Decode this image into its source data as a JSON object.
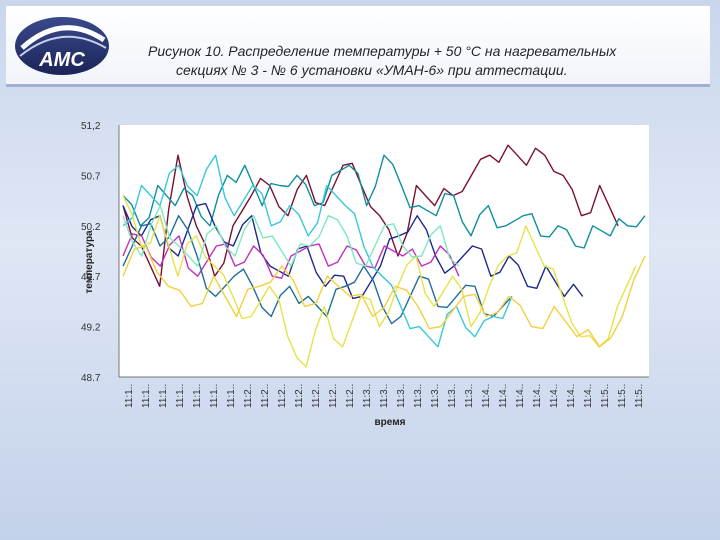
{
  "header": {
    "logo_text": "АМС",
    "caption_line1": "Рисунок 10. Распределение температуры + 50 °С на нагревательных",
    "caption_line2": "секциях № 3 - № 6 установки «УМАН-6» при аттестации."
  },
  "chart_data": {
    "type": "line",
    "xlabel": "время",
    "ylabel": "температура",
    "ylim": [
      48.7,
      51.2
    ],
    "yticks": [
      "51,2",
      "50.7",
      "50.2",
      "49.7",
      "49.2",
      "48.7"
    ],
    "xticks": [
      "11:1..",
      "11:1..",
      "11:1..",
      "11:1..",
      "11:1..",
      "11:1..",
      "11:1..",
      "11:2..",
      "11:2..",
      "11:2..",
      "11:2..",
      "11:2..",
      "11:2..",
      "11:2..",
      "11:3..",
      "11:3..",
      "11:3..",
      "11:3..",
      "11:3..",
      "11:3..",
      "11:3..",
      "11:4..",
      "11:4..",
      "11:4..",
      "11:4..",
      "11:4..",
      "11:4..",
      "11:4..",
      "11:5..",
      "11:5..",
      "11:5.."
    ],
    "grid": false,
    "legend": "none",
    "series": [
      {
        "color": "#7a1030",
        "values": [
          50.4,
          50.0,
          49.6,
          50.9,
          50.2,
          49.7,
          50.2,
          50.5,
          50.6,
          50.3,
          50.7,
          50.4,
          50.8,
          50.6,
          50.3,
          49.9,
          50.6,
          50.4,
          50.5,
          50.7,
          50.9,
          51.0,
          50.8,
          50.9,
          50.7,
          50.3,
          50.6,
          50.2
        ]
      },
      {
        "color": "#0e8ea0",
        "values": [
          50.5,
          50.2,
          50.6,
          50.4,
          50.5,
          50.2,
          50.7,
          50.8,
          50.4,
          50.6,
          50.7,
          50.4,
          50.7,
          50.8,
          50.4,
          50.9,
          50.6,
          50.4,
          50.3,
          50.5,
          50.1,
          50.4,
          50.2,
          50.3,
          50.1,
          50.2,
          50.0,
          50.2,
          50.1,
          50.2,
          50.3
        ]
      },
      {
        "color": "#1c2a8c",
        "values": [
          50.4,
          50.1,
          50.3,
          49.9,
          50.4,
          50.2,
          50.0,
          50.3,
          49.8,
          49.7,
          50.0,
          49.6,
          49.7,
          49.5,
          49.8,
          50.1,
          50.3,
          49.9,
          49.8,
          50.0,
          49.7,
          49.9,
          49.6,
          49.8,
          49.5,
          49.5
        ]
      },
      {
        "color": "#c030c0",
        "values": [
          49.9,
          50.1,
          49.8,
          50.1,
          49.7,
          50.0,
          49.8,
          50.0,
          49.7,
          49.9,
          50.0,
          49.8,
          50.0,
          49.8,
          50.0,
          49.9,
          49.8,
          50.0,
          49.7
        ]
      },
      {
        "color": "#1f6d9a",
        "values": [
          49.8,
          50.2,
          50.0,
          50.3,
          49.9,
          49.5,
          49.7,
          49.6,
          49.3,
          49.6,
          49.5,
          49.3,
          49.6,
          49.8,
          49.4,
          49.3,
          49.7,
          49.4,
          49.5,
          49.6,
          49.3,
          49.5
        ]
      },
      {
        "color": "#38c8d8",
        "values": [
          50.2,
          50.6,
          50.4,
          50.8,
          50.5,
          50.9,
          50.3,
          50.6,
          50.2,
          50.4,
          50.1,
          50.6,
          50.4,
          50.0,
          49.7,
          49.4,
          49.2,
          49.0,
          49.4,
          49.1,
          49.3,
          49.5
        ]
      },
      {
        "color": "#e6e24a",
        "values": [
          50.5,
          50.0,
          50.3,
          49.7,
          50.1,
          49.8,
          49.5,
          49.3,
          49.6,
          49.1,
          48.8,
          49.4,
          49.0,
          49.5,
          49.2,
          49.6,
          49.9,
          49.4,
          49.7,
          49.2,
          49.6,
          49.9,
          50.2,
          49.8,
          49.5,
          49.1,
          49.0,
          49.4,
          49.8
        ]
      },
      {
        "color": "#7fe8c0",
        "values": [
          50.3,
          49.9,
          50.4,
          50.0,
          49.8,
          50.2,
          49.9,
          50.3,
          50.1,
          49.8,
          50.0,
          50.3,
          50.1,
          49.8,
          50.2,
          50.0,
          49.9,
          50.2,
          49.8
        ]
      },
      {
        "color": "#f2d040",
        "values": [
          49.7,
          50.0,
          49.6,
          49.4,
          49.7,
          49.3,
          49.6,
          49.8,
          49.4,
          49.7,
          49.5,
          49.3,
          49.6,
          49.4,
          49.2,
          49.5,
          49.3,
          49.5,
          49.2,
          49.4,
          49.1,
          49.0,
          49.3,
          49.9
        ]
      }
    ]
  }
}
